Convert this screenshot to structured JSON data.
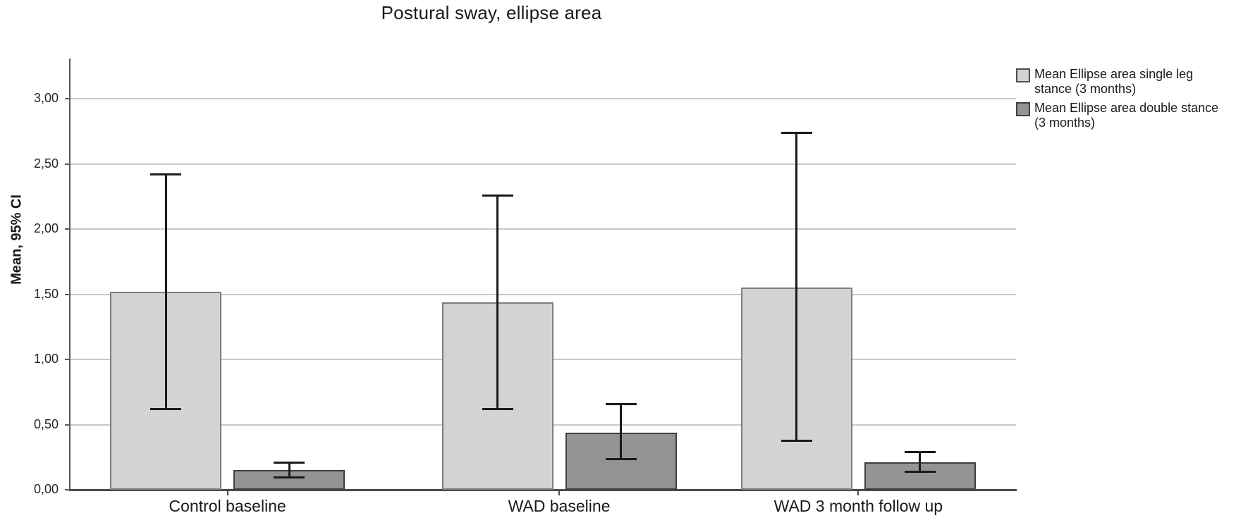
{
  "title": "Postural sway, ellipse area",
  "y_axis": {
    "label": "Mean, 95% CI",
    "tick_labels": [
      "0,00",
      "0,50",
      "1,00",
      "1,50",
      "2,00",
      "2,50",
      "3,00"
    ]
  },
  "legend": [
    {
      "line1": "Mean Ellipse area single leg",
      "line2": "stance (3 months)",
      "color": "#d3d3d3"
    },
    {
      "line1": "Mean Ellipse area double stance",
      "line2": "(3 months)",
      "color": "#949494"
    }
  ],
  "chart_data": {
    "type": "bar",
    "title": "Postural sway, ellipse area",
    "xlabel": "",
    "ylabel": "Mean, 95% CI",
    "categories": [
      "Control baseline",
      "WAD baseline",
      "WAD 3 month follow up"
    ],
    "series": [
      {
        "name": "Mean Ellipse area single leg stance (3 months)",
        "color": "#d3d3d3",
        "values": [
          1.52,
          1.44,
          1.55
        ],
        "ci_low": [
          0.62,
          0.62,
          0.38
        ],
        "ci_high": [
          2.42,
          2.26,
          2.74
        ]
      },
      {
        "name": "Mean Ellipse area double stance (3 months)",
        "color": "#949494",
        "values": [
          0.15,
          0.44,
          0.21
        ],
        "ci_low": [
          0.1,
          0.24,
          0.14
        ],
        "ci_high": [
          0.21,
          0.66,
          0.29
        ]
      }
    ],
    "yticks": [
      0,
      0.5,
      1,
      1.5,
      2,
      2.5,
      3
    ],
    "ylim": [
      0,
      3.31
    ],
    "decimal_separator": ",",
    "grid": true,
    "error_bars": "95% CI",
    "legend_position": "top-right"
  }
}
